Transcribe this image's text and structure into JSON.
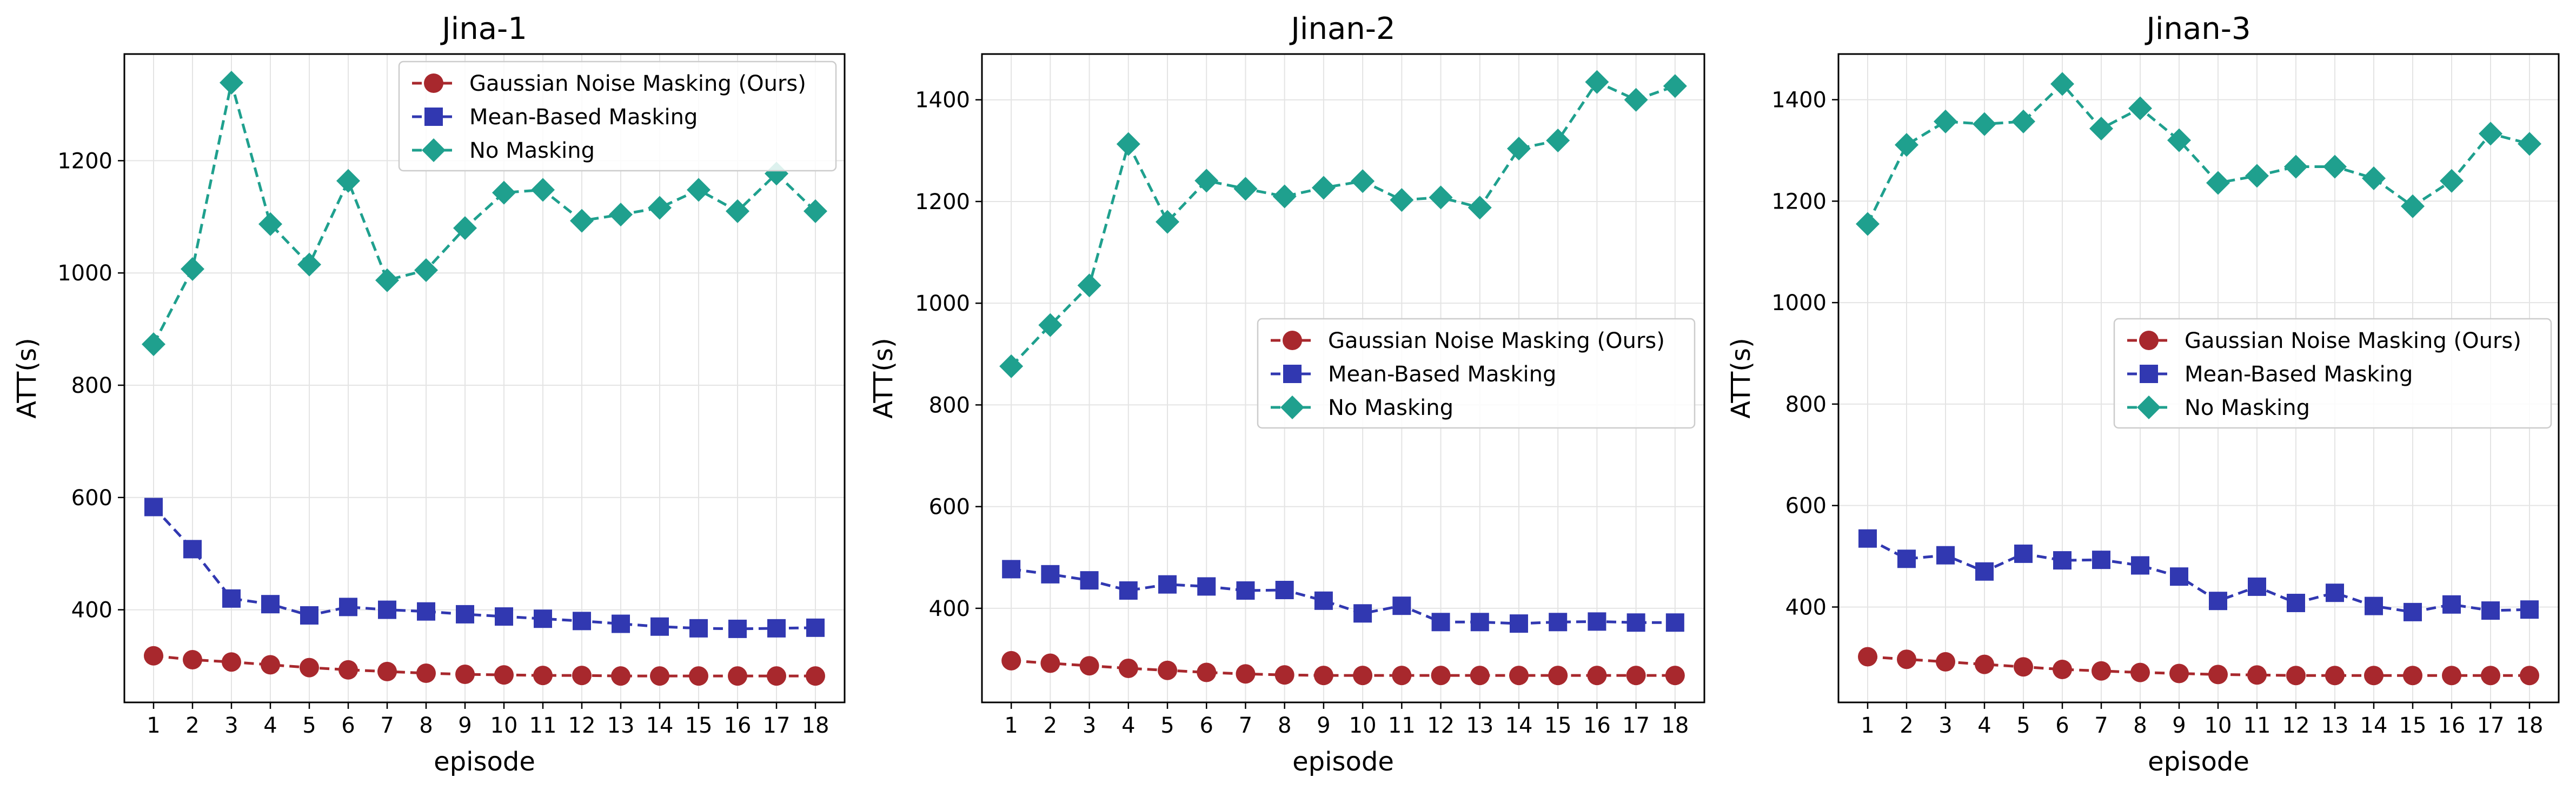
{
  "chart_data": [
    {
      "type": "line",
      "title": "Jina-1",
      "xlabel": "episode",
      "ylabel": "ATT(s)",
      "xlim": [
        0.25,
        18.75
      ],
      "ylim": [
        235,
        1390
      ],
      "yticks": [
        400,
        600,
        800,
        1000,
        1200
      ],
      "legend_position": "top-right",
      "categories": [
        1,
        2,
        3,
        4,
        5,
        6,
        7,
        8,
        9,
        10,
        11,
        12,
        13,
        14,
        15,
        16,
        17,
        18
      ],
      "series": [
        {
          "name": "Gaussian Noise Masking (Ours)",
          "color": "#a8282d",
          "marker": "circle",
          "values": [
            318,
            311,
            307,
            302,
            297,
            293,
            290,
            287,
            285,
            284,
            283,
            283,
            282,
            282,
            282,
            282,
            282,
            282
          ]
        },
        {
          "name": "Mean-Based Masking",
          "color": "#3138b1",
          "marker": "square",
          "values": [
            583,
            508,
            420,
            410,
            390,
            405,
            400,
            397,
            392,
            388,
            384,
            380,
            375,
            370,
            367,
            366,
            367,
            368
          ]
        },
        {
          "name": "No Masking",
          "color": "#1fa08e",
          "marker": "diamond",
          "values": [
            873,
            1007,
            1339,
            1087,
            1015,
            1164,
            987,
            1005,
            1080,
            1143,
            1148,
            1093,
            1104,
            1116,
            1148,
            1110,
            1177,
            1110
          ]
        }
      ]
    },
    {
      "type": "line",
      "title": "Jinan-2",
      "xlabel": "episode",
      "ylabel": "ATT(s)",
      "xlim": [
        0.25,
        18.75
      ],
      "ylim": [
        215,
        1490
      ],
      "yticks": [
        400,
        600,
        800,
        1000,
        1200,
        1400
      ],
      "legend_position": "center-right",
      "categories": [
        1,
        2,
        3,
        4,
        5,
        6,
        7,
        8,
        9,
        10,
        11,
        12,
        13,
        14,
        15,
        16,
        17,
        18
      ],
      "series": [
        {
          "name": "Gaussian Noise Masking (Ours)",
          "color": "#a8282d",
          "marker": "circle",
          "values": [
            297,
            292,
            287,
            282,
            278,
            274,
            271,
            269,
            268,
            268,
            268,
            268,
            268,
            268,
            268,
            268,
            268,
            268
          ]
        },
        {
          "name": "Mean-Based Masking",
          "color": "#3138b1",
          "marker": "square",
          "values": [
            477,
            467,
            455,
            435,
            447,
            443,
            435,
            436,
            415,
            390,
            405,
            373,
            373,
            370,
            373,
            374,
            372,
            372
          ]
        },
        {
          "name": "No Masking",
          "color": "#1fa08e",
          "marker": "diamond",
          "values": [
            876,
            957,
            1035,
            1313,
            1160,
            1241,
            1225,
            1210,
            1227,
            1240,
            1203,
            1208,
            1188,
            1304,
            1320,
            1435,
            1400,
            1427
          ]
        }
      ]
    },
    {
      "type": "line",
      "title": "Jinan-3",
      "xlabel": "episode",
      "ylabel": "ATT(s)",
      "xlim": [
        0.25,
        18.75
      ],
      "ylim": [
        212,
        1490
      ],
      "yticks": [
        400,
        600,
        800,
        1000,
        1200,
        1400
      ],
      "legend_position": "center-right",
      "categories": [
        1,
        2,
        3,
        4,
        5,
        6,
        7,
        8,
        9,
        10,
        11,
        12,
        13,
        14,
        15,
        16,
        17,
        18
      ],
      "series": [
        {
          "name": "Gaussian Noise Masking (Ours)",
          "color": "#a8282d",
          "marker": "circle",
          "values": [
            302,
            297,
            292,
            287,
            282,
            277,
            274,
            271,
            269,
            267,
            266,
            265,
            265,
            265,
            265,
            265,
            265,
            265
          ]
        },
        {
          "name": "Mean-Based Masking",
          "color": "#3138b1",
          "marker": "square",
          "values": [
            535,
            495,
            502,
            470,
            505,
            492,
            493,
            482,
            460,
            412,
            440,
            408,
            428,
            402,
            390,
            405,
            393,
            395
          ]
        },
        {
          "name": "No Masking",
          "color": "#1fa08e",
          "marker": "diamond",
          "values": [
            1155,
            1311,
            1357,
            1352,
            1357,
            1431,
            1343,
            1383,
            1320,
            1236,
            1250,
            1268,
            1268,
            1245,
            1190,
            1240,
            1333,
            1313
          ]
        }
      ]
    }
  ]
}
